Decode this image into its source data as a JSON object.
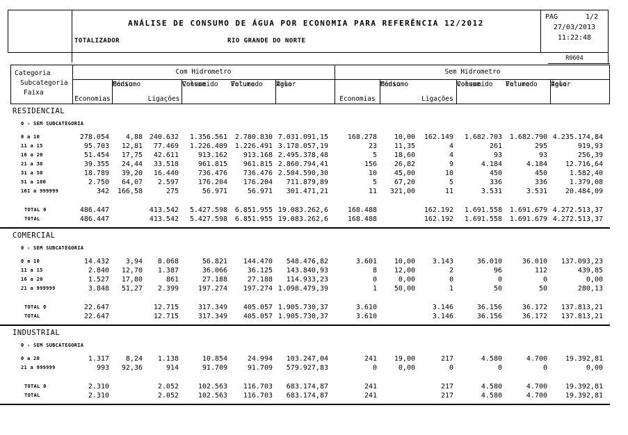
{
  "page_header": {
    "title": "ANÁLISE DE CONSUMO DE ÁGUA POR ECONOMIA PARA REFERÊNCIA 12/2012",
    "scope": "TOTALIZADOR",
    "region": "RIO GRANDE DO NORTE",
    "pag_label": "PAG",
    "page": "1/2",
    "date": "27/03/2013",
    "time": "11:22:48",
    "report_code": "R0604"
  },
  "table_header": {
    "categoria": "Categoria",
    "subcategoria": "Subcategoria",
    "faixa": "Faixa",
    "com_hidrometro": "Com Hidrometro",
    "sem_hidrometro": "Sem Hidrometro",
    "cols": {
      "economias": "Economias",
      "consumo": "Consumo",
      "medio": "Médio",
      "ligacoes": "Ligações",
      "volume": "Volume",
      "consumido": "Consumido",
      "faturado": "Faturado",
      "valor": "Valor",
      "agua": "Água"
    }
  },
  "sections": [
    {
      "name": "RESIDENCIAL",
      "subcategory": "0 - SEM SUBCATEGORIA",
      "rows": [
        {
          "faixa": "0 a 10",
          "com": [
            "278.054",
            "4,88",
            "240.632",
            "1.356.561",
            "2.780.830",
            "7.031.091,15"
          ],
          "sem": [
            "168.278",
            "10,00",
            "162.149",
            "1.682.703",
            "1.682.790",
            "4.235.174,84"
          ]
        },
        {
          "faixa": "11 a 15",
          "com": [
            "95.703",
            "12,81",
            "77.469",
            "1.226.409",
            "1.226.491",
            "3.178.057,19"
          ],
          "sem": [
            "23",
            "11,35",
            "4",
            "261",
            "295",
            "919,93"
          ]
        },
        {
          "faixa": "16 a 20",
          "com": [
            "51.454",
            "17,75",
            "42.611",
            "913.162",
            "913.168",
            "2.495.378,48"
          ],
          "sem": [
            "5",
            "18,60",
            "4",
            "93",
            "93",
            "256,39"
          ]
        },
        {
          "faixa": "21 a 30",
          "com": [
            "39.355",
            "24,44",
            "33.518",
            "961.815",
            "961.815",
            "2.860.794,41"
          ],
          "sem": [
            "156",
            "26,82",
            "9",
            "4.184",
            "4.184",
            "12.716,64"
          ]
        },
        {
          "faixa": "31 a 50",
          "com": [
            "18.789",
            "39,20",
            "16.440",
            "736.476",
            "736.476",
            "2.504.590,30"
          ],
          "sem": [
            "10",
            "45,00",
            "10",
            "450",
            "450",
            "1.582,40"
          ]
        },
        {
          "faixa": "51 a 100",
          "com": [
            "2.750",
            "64,07",
            "2.597",
            "176.204",
            "176.204",
            "711.879,89"
          ],
          "sem": [
            "5",
            "67,20",
            "5",
            "336",
            "336",
            "1.379,08"
          ]
        },
        {
          "faixa": "101 a 999999",
          "com": [
            "342",
            "166,58",
            "275",
            "56.971",
            "56.971",
            "301.471,21"
          ],
          "sem": [
            "11",
            "321,00",
            "11",
            "3.531",
            "3.531",
            "20.484,09"
          ]
        }
      ],
      "totals": [
        {
          "label": "TOTAL 0",
          "com": [
            "486.447",
            "",
            "413.542",
            "5.427.598",
            "6.851.955",
            "19.083.262,6"
          ],
          "sem": [
            "168.488",
            "",
            "162.192",
            "1.691.558",
            "1.691.679",
            "4.272.513,37"
          ]
        },
        {
          "label": "TOTAL",
          "com": [
            "486.447",
            "",
            "413.542",
            "5.427.598",
            "6.851.955",
            "19.083.262,6"
          ],
          "sem": [
            "168.488",
            "",
            "162.192",
            "1.691.558",
            "1.691.679",
            "4.272.513,37"
          ]
        }
      ]
    },
    {
      "name": "COMERCIAL",
      "subcategory": "0 - SEM SUBCATEGORIA",
      "rows": [
        {
          "faixa": "0 a 10",
          "com": [
            "14.432",
            "3,94",
            "8.068",
            "56.821",
            "144.470",
            "548.476,82"
          ],
          "sem": [
            "3.601",
            "10,00",
            "3.143",
            "36.010",
            "36.010",
            "137.093,23"
          ]
        },
        {
          "faixa": "11 a 15",
          "com": [
            "2.840",
            "12,70",
            "1.387",
            "36.066",
            "36.125",
            "143.840,93"
          ],
          "sem": [
            "8",
            "12,00",
            "2",
            "96",
            "112",
            "439,85"
          ]
        },
        {
          "faixa": "16 a 20",
          "com": [
            "1.527",
            "17,80",
            "861",
            "27.188",
            "27.188",
            "114.933,23"
          ],
          "sem": [
            "0",
            "0,00",
            "0",
            "0",
            "0",
            "0,00"
          ]
        },
        {
          "faixa": "21 a 999999",
          "com": [
            "3.848",
            "51,27",
            "2.399",
            "197.274",
            "197.274",
            "1.098.479,39"
          ],
          "sem": [
            "1",
            "50,00",
            "1",
            "50",
            "50",
            "280,13"
          ]
        }
      ],
      "totals": [
        {
          "label": "TOTAL 0",
          "com": [
            "22.647",
            "",
            "12.715",
            "317.349",
            "405.057",
            "1.905.730,37"
          ],
          "sem": [
            "3.610",
            "",
            "3.146",
            "36.156",
            "36.172",
            "137.813,21"
          ]
        },
        {
          "label": "TOTAL",
          "com": [
            "22.647",
            "",
            "12.715",
            "317.349",
            "405.057",
            "1.905.730,37"
          ],
          "sem": [
            "3.610",
            "",
            "3.146",
            "36.156",
            "36.172",
            "137.813,21"
          ]
        }
      ]
    },
    {
      "name": "INDUSTRIAL",
      "subcategory": "0 - SEM SUBCATEGORIA",
      "rows": [
        {
          "faixa": "0 a 20",
          "com": [
            "1.317",
            "8,24",
            "1.138",
            "10.854",
            "24.994",
            "103.247,04"
          ],
          "sem": [
            "241",
            "19,00",
            "217",
            "4.580",
            "4.700",
            "19.392,81"
          ]
        },
        {
          "faixa": "21 a 999999",
          "com": [
            "993",
            "92,36",
            "914",
            "91.709",
            "91.709",
            "579.927,83"
          ],
          "sem": [
            "0",
            "0,00",
            "0",
            "0",
            "0",
            "0,00"
          ]
        }
      ],
      "totals": [
        {
          "label": "TOTAL 0",
          "com": [
            "2.310",
            "",
            "2.052",
            "102.563",
            "116.703",
            "683.174,87"
          ],
          "sem": [
            "241",
            "",
            "217",
            "4.580",
            "4.700",
            "19.392,81"
          ]
        },
        {
          "label": "TOTAL",
          "com": [
            "2.310",
            "",
            "2.052",
            "102.563",
            "116.703",
            "683.174,87"
          ],
          "sem": [
            "241",
            "",
            "217",
            "4.580",
            "4.700",
            "19.392,81"
          ]
        }
      ]
    }
  ]
}
